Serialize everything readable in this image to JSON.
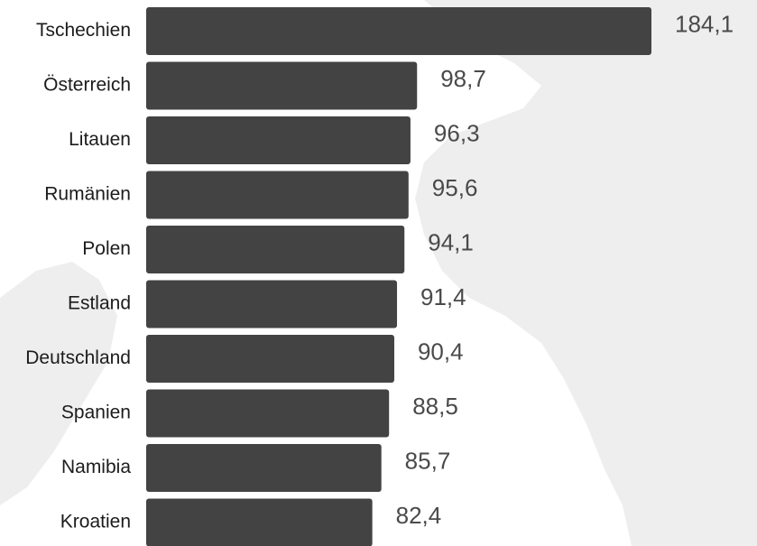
{
  "chart_data": {
    "type": "bar",
    "orientation": "horizontal",
    "categories": [
      "Tschechien",
      "Österreich",
      "Litauen",
      "Rumänien",
      "Polen",
      "Estland",
      "Deutschland",
      "Spanien",
      "Namibia",
      "Kroatien"
    ],
    "values": [
      184.1,
      98.7,
      96.3,
      95.6,
      94.1,
      91.4,
      90.4,
      88.5,
      85.7,
      82.4
    ],
    "value_labels": [
      "184,1",
      "98,7",
      "96,3",
      "95,6",
      "94,1",
      "91,4",
      "90,4",
      "88,5",
      "85,7",
      "82,4"
    ],
    "title": "",
    "xlabel": "",
    "ylabel": "",
    "xlim": [
      0,
      184.1
    ],
    "grid": false,
    "legend": "none",
    "colors": {
      "bar": "#434343",
      "background_map": "#eeeeee",
      "category_text": "#1c1c1c",
      "value_text": "#4a4a4a"
    }
  }
}
